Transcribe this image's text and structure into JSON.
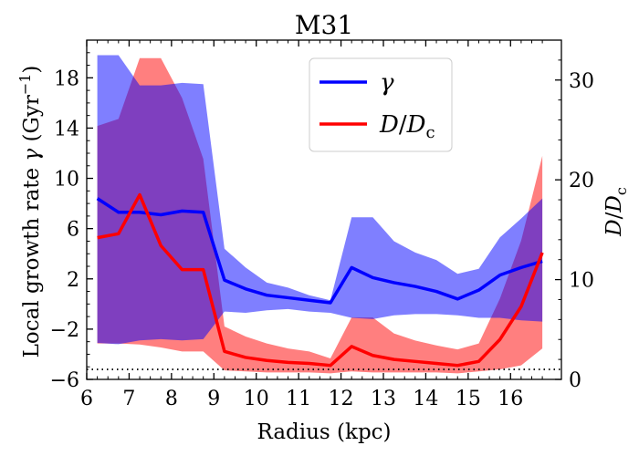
{
  "chart_data": {
    "type": "line",
    "title": "M31",
    "xlabel": "Radius (kpc)",
    "ylabel_left": "Local growth rate γ (Gyr⁻¹)",
    "ylabel_right": "D/D_c",
    "xlim": [
      6,
      17.2
    ],
    "ylim_left": [
      -6,
      21
    ],
    "ylim_right": [
      0,
      34
    ],
    "x_ticks": [
      6,
      7,
      8,
      9,
      10,
      11,
      12,
      13,
      14,
      15,
      16
    ],
    "y_left_ticks": [
      -6,
      -2,
      2,
      6,
      10,
      14,
      18
    ],
    "y_right_ticks": [
      0,
      10,
      20,
      30
    ],
    "legend_position": "top-center",
    "reference_line": {
      "axis": "right",
      "value": 1,
      "style": "dotted"
    },
    "series": [
      {
        "name": "γ",
        "axis": "left",
        "color": "#0000ff",
        "x": [
          6.25,
          6.75,
          7.25,
          7.75,
          8.25,
          8.75,
          9.25,
          9.75,
          10.25,
          10.75,
          11.25,
          11.75,
          12.25,
          12.75,
          13.25,
          13.75,
          14.25,
          14.75,
          15.25,
          15.75,
          16.25,
          16.75
        ],
        "y": [
          8.4,
          7.3,
          7.3,
          7.1,
          7.4,
          7.3,
          1.9,
          1.2,
          0.7,
          0.5,
          0.3,
          0.1,
          2.9,
          2.1,
          1.7,
          1.4,
          1.0,
          0.4,
          1.1,
          2.3,
          2.9,
          3.4
        ],
        "band_low": [
          -3.1,
          -3.2,
          -2.9,
          -2.8,
          -2.9,
          -2.8,
          -0.6,
          -0.7,
          -0.5,
          -0.4,
          -0.6,
          -0.7,
          -1.1,
          -1.2,
          -0.9,
          -0.8,
          -0.8,
          -0.9,
          -1.1,
          -1.1,
          -1.3,
          -1.4
        ],
        "band_high": [
          19.8,
          19.8,
          17.4,
          17.4,
          17.6,
          17.5,
          4.4,
          2.9,
          1.7,
          1.3,
          0.7,
          0.3,
          6.9,
          6.9,
          5.0,
          4.1,
          3.5,
          2.4,
          2.8,
          5.3,
          6.8,
          8.4
        ]
      },
      {
        "name": "D/D_c",
        "axis": "right",
        "color": "#ff0000",
        "x": [
          6.25,
          6.75,
          7.25,
          7.75,
          8.25,
          8.75,
          9.25,
          9.75,
          10.25,
          10.75,
          11.25,
          11.75,
          12.25,
          12.75,
          13.25,
          13.75,
          14.25,
          14.75,
          15.25,
          15.75,
          16.25,
          16.75
        ],
        "y": [
          14.2,
          14.6,
          18.5,
          13.4,
          11.0,
          11.0,
          2.8,
          2.2,
          1.9,
          1.7,
          1.6,
          1.4,
          3.3,
          2.4,
          2.0,
          1.8,
          1.6,
          1.4,
          1.8,
          4.0,
          7.3,
          12.7
        ],
        "band_low": [
          3.6,
          3.6,
          3.5,
          3.2,
          2.8,
          2.8,
          0.9,
          0.8,
          0.7,
          0.7,
          0.7,
          0.6,
          0.8,
          0.7,
          0.7,
          0.7,
          0.7,
          0.6,
          0.8,
          1.0,
          1.4,
          3.1
        ],
        "band_high": [
          25.4,
          26.1,
          32.2,
          32.2,
          28.2,
          22.1,
          5.3,
          4.3,
          3.6,
          3.1,
          2.8,
          2.1,
          6.2,
          6.2,
          4.6,
          3.9,
          3.4,
          3.0,
          3.6,
          8.1,
          13.9,
          22.4
        ]
      }
    ],
    "colors": {
      "gamma_line": "#0000ff",
      "gamma_band": "#0000ff",
      "ratio_line": "#ff0000",
      "ratio_band": "#ff0000",
      "overlap": "#800080"
    }
  }
}
